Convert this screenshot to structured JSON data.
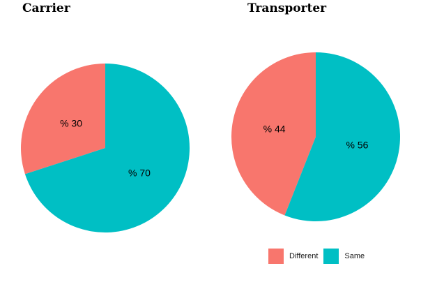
{
  "chart_data": [
    {
      "type": "pie",
      "title": "Carrier",
      "categories": [
        "Different",
        "Same"
      ],
      "values": [
        30,
        70
      ],
      "labels": [
        "% 30",
        "% 70"
      ]
    },
    {
      "type": "pie",
      "title": "Transporter",
      "categories": [
        "Different",
        "Same"
      ],
      "values": [
        44,
        56
      ],
      "labels": [
        "% 44",
        "% 56"
      ]
    }
  ],
  "legend": {
    "placement": "bottom-right",
    "items": [
      {
        "label": "Different",
        "color": "#F8766D"
      },
      {
        "label": "Same",
        "color": "#00BFC4"
      }
    ]
  }
}
